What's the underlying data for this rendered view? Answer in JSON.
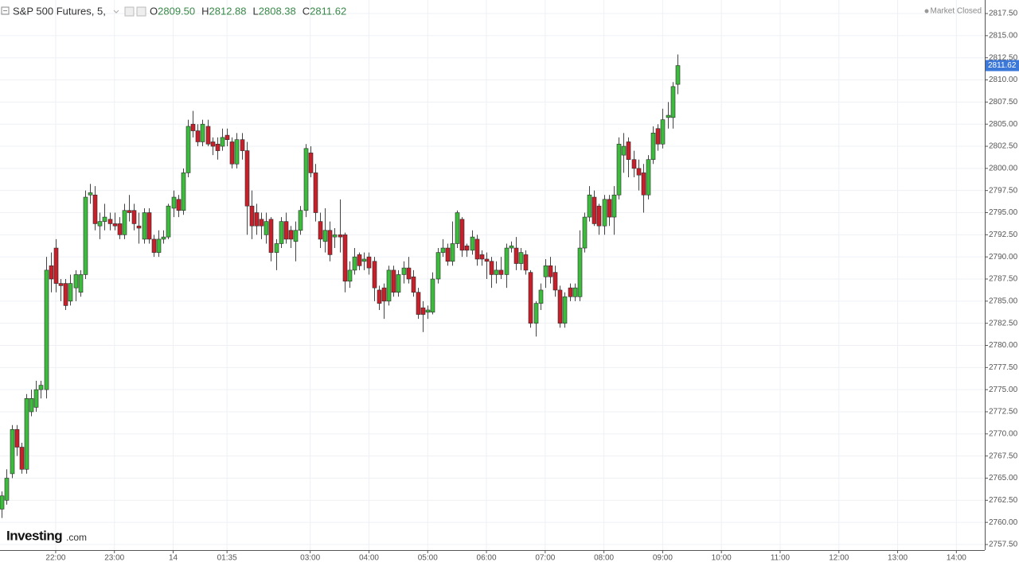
{
  "header": {
    "symbol": "S&P 500 Futures, 5,",
    "ohlc": [
      {
        "key": "O",
        "value": "2809.50"
      },
      {
        "key": "H",
        "value": "2812.88"
      },
      {
        "key": "L",
        "value": "2808.38"
      },
      {
        "key": "C",
        "value": "2811.62"
      }
    ],
    "status": "Market Closed"
  },
  "logo": {
    "name": "Investing",
    "suffix": ".com"
  },
  "chart_data": {
    "type": "candlestick",
    "up_color": "#3dbb3d",
    "down_color": "#c8202a",
    "grid": true,
    "price_tag": "2811.62",
    "price_tag_color": "#3b78d8",
    "ylim": [
      2756.87,
      2819.03
    ],
    "yticks": [
      {
        "value": 2757.5,
        "label": "2757.50"
      },
      {
        "value": 2760,
        "label": "2760.00"
      },
      {
        "value": 2762.5,
        "label": "2762.50"
      },
      {
        "value": 2765,
        "label": "2765.00"
      },
      {
        "value": 2767.5,
        "label": "2767.50"
      },
      {
        "value": 2770,
        "label": "2770.00"
      },
      {
        "value": 2772.5,
        "label": "2772.50"
      },
      {
        "value": 2775,
        "label": "2775.00"
      },
      {
        "value": 2777.5,
        "label": "2777.50"
      },
      {
        "value": 2780,
        "label": "2780.00"
      },
      {
        "value": 2782.5,
        "label": "2782.50"
      },
      {
        "value": 2785,
        "label": "2785.00"
      },
      {
        "value": 2787.5,
        "label": "2787.50"
      },
      {
        "value": 2790,
        "label": "2790.00"
      },
      {
        "value": 2792.5,
        "label": "2792.50"
      },
      {
        "value": 2795,
        "label": "2795.00"
      },
      {
        "value": 2797.5,
        "label": "2797.50"
      },
      {
        "value": 2800,
        "label": "2800.00"
      },
      {
        "value": 2802.5,
        "label": "2802.50"
      },
      {
        "value": 2805,
        "label": "2805.00"
      },
      {
        "value": 2807.5,
        "label": "2807.50"
      },
      {
        "value": 2810,
        "label": "2810.00"
      },
      {
        "value": 2812.5,
        "label": "2812.50"
      },
      {
        "value": 2815,
        "label": "2815.00"
      },
      {
        "value": 2817.5,
        "label": "2817.50"
      }
    ],
    "xlim": [
      -0.374,
      200.8
    ],
    "xticks": [
      {
        "value": 11,
        "label": "22:00"
      },
      {
        "value": 23,
        "label": "23:00"
      },
      {
        "value": 35,
        "label": "14"
      },
      {
        "value": 46,
        "label": "01:35"
      },
      {
        "value": 63,
        "label": "03:00"
      },
      {
        "value": 75,
        "label": "04:00"
      },
      {
        "value": 87,
        "label": "05:00"
      },
      {
        "value": 99,
        "label": "06:00"
      },
      {
        "value": 111,
        "label": "07:00"
      },
      {
        "value": 123,
        "label": "08:00"
      },
      {
        "value": 135,
        "label": "09:00"
      },
      {
        "value": 147,
        "label": "10:00"
      },
      {
        "value": 159,
        "label": "11:00"
      },
      {
        "value": 171,
        "label": "12:00"
      },
      {
        "value": 183,
        "label": "13:00"
      },
      {
        "value": 195,
        "label": "14:00"
      }
    ],
    "open": [
      2761.5,
      2762.5,
      2765.5,
      2770.5,
      2768.5,
      2766,
      2772.5,
      2773,
      2775,
      2775,
      2789,
      2791,
      2787,
      2787,
      2785,
      2786.5,
      2786,
      2788,
      2797,
      2797,
      2793.5,
      2794,
      2794.25,
      2793.75,
      2793.75,
      2792.5,
      2795.25,
      2795.25,
      2793.5,
      2792,
      2795,
      2792,
      2790.5,
      2792,
      2792.25,
      2795.5,
      2796.5,
      2795.25,
      2799.5,
      2805,
      2804.25,
      2803,
      2804.75,
      2803,
      2802.75,
      2802.5,
      2803.75,
      2803,
      2800.5,
      2803.25,
      2802,
      2795.75,
      2795,
      2794.25,
      2792.5,
      2794.25,
      2790.5,
      2791.5,
      2794,
      2793,
      2791.75,
      2793,
      2795.25,
      2801.75,
      2799.5,
      2794,
      2791.75,
      2793,
      2792.25,
      2792.5,
      2792.5,
      2787.25,
      2788.5,
      2790.25,
      2789.5,
      2790,
      2789.5,
      2786.25,
      2786.5,
      2785,
      2788.5,
      2786,
      2788,
      2788.75,
      2787.75,
      2786,
      2784.25,
      2783.75,
      2783.75,
      2787.5,
      2790.5,
      2791,
      2789.5,
      2791.5,
      2794.25,
      2791.25,
      2790.75,
      2792,
      2790.25,
      2789.75,
      2789.5,
      2788,
      2788.5,
      2788,
      2791,
      2791,
      2789.25,
      2790.25,
      2788.25,
      2782.5,
      2784.75,
      2787.75,
      2789,
      2788.25,
      2786.25,
      2782.5,
      2786.5,
      2785.5,
      2785.5,
      2791,
      2794.5,
      2796.75,
      2795.75,
      2793.5,
      2796.5,
      2794.5,
      2797,
      2801.5,
      2803,
      2801,
      2800,
      2799.5,
      2797,
      2801,
      2804.5,
      2802.75,
      2805.75,
      2805.75,
      2809.5
    ],
    "high": [
      2763.5,
      2766,
      2771,
      2771,
      2769,
      2774.5,
      2775,
      2776,
      2776,
      2790,
      2790.5,
      2792,
      2787.5,
      2787.5,
      2788,
      2788.5,
      2788.5,
      2797.5,
      2798.25,
      2798,
      2795,
      2796,
      2795,
      2795,
      2794.5,
      2796,
      2797,
      2796,
      2795,
      2795.5,
      2795.5,
      2792.5,
      2793,
      2793,
      2796,
      2797.5,
      2797,
      2800,
      2805.5,
      2806.5,
      2805,
      2805.5,
      2805.5,
      2803.5,
      2803.5,
      2804.5,
      2804.5,
      2803.5,
      2804,
      2804,
      2803,
      2797.5,
      2796,
      2795,
      2795,
      2794.5,
      2792,
      2794.5,
      2795,
      2793.5,
      2794,
      2795.75,
      2802.75,
      2802.5,
      2800.5,
      2795,
      2795.5,
      2794,
      2793.25,
      2796.5,
      2792.75,
      2789.5,
      2791,
      2790.5,
      2790.5,
      2790.5,
      2790,
      2786.75,
      2787,
      2789,
      2789,
      2788.5,
      2789.5,
      2790,
      2788.5,
      2786.5,
      2785,
      2784.5,
      2788.25,
      2791,
      2792,
      2791.5,
      2794,
      2795.25,
      2794.5,
      2791.5,
      2793,
      2792.5,
      2790.75,
      2790.5,
      2790,
      2789.5,
      2790,
      2791.5,
      2791.75,
      2792.25,
      2791,
      2790.75,
      2788.5,
      2785,
      2787,
      2789.75,
      2790,
      2789,
      2786.75,
      2786,
      2787,
      2787,
      2793,
      2795,
      2798,
      2797.5,
      2796,
      2797,
      2797,
      2798,
      2803.5,
      2804,
      2803.5,
      2802,
      2801,
      2800.5,
      2801.5,
      2804.75,
      2805,
      2806.75,
      2807.5,
      2809.75,
      2812.88
    ],
    "low": [
      2760.5,
      2762,
      2765,
      2767.5,
      2765.5,
      2765.5,
      2772,
      2772.5,
      2774,
      2774,
      2786,
      2786,
      2785,
      2784,
      2784.5,
      2785,
      2785.5,
      2787.5,
      2796,
      2793,
      2792,
      2793,
      2793,
      2793,
      2792,
      2792,
      2794,
      2793,
      2791.5,
      2791.5,
      2791.5,
      2790,
      2790,
      2791.5,
      2792,
      2794.5,
      2794.5,
      2794.75,
      2799,
      2803.5,
      2802.5,
      2802.5,
      2802.5,
      2801.5,
      2801,
      2802,
      2802.5,
      2800,
      2800,
      2801,
      2792.5,
      2792,
      2792.5,
      2792,
      2791.5,
      2789.5,
      2788.5,
      2791,
      2791.5,
      2791,
      2789.5,
      2792.5,
      2794.5,
      2799,
      2794,
      2791,
      2790.5,
      2789.5,
      2791,
      2790.5,
      2786,
      2786.5,
      2788,
      2788.5,
      2788.5,
      2788,
      2785,
      2784,
      2783,
      2784.5,
      2785.5,
      2785.5,
      2787,
      2787,
      2785.5,
      2783,
      2781.5,
      2783,
      2783.5,
      2787,
      2790,
      2789,
      2789,
      2791,
      2790,
      2790,
      2790.25,
      2789,
      2789,
      2787.5,
      2786.5,
      2787,
      2787.5,
      2786.5,
      2790.5,
      2788.5,
      2788.5,
      2788,
      2782,
      2781,
      2784,
      2786.5,
      2787,
      2785.5,
      2782,
      2782,
      2785,
      2785,
      2785,
      2790.5,
      2794,
      2793.5,
      2792.5,
      2792.5,
      2793.5,
      2792.5,
      2796.5,
      2799.5,
      2799,
      2799,
      2797.5,
      2795,
      2796.5,
      2800.5,
      2802,
      2802.25,
      2804.5,
      2804.5,
      2808.38
    ],
    "close": [
      2763,
      2765,
      2770.5,
      2768.5,
      2766,
      2774,
      2774,
      2775,
      2775.5,
      2788.5,
      2787.5,
      2787,
      2786.75,
      2784.5,
      2787,
      2788,
      2788,
      2796.75,
      2797.25,
      2793.75,
      2794,
      2794.5,
      2793.75,
      2793.5,
      2792.5,
      2795.25,
      2795,
      2793.75,
      2793.25,
      2795,
      2792,
      2790.5,
      2792,
      2792.25,
      2795.75,
      2796.75,
      2795.25,
      2799.5,
      2804.75,
      2804.25,
      2803,
      2805,
      2802.75,
      2802.5,
      2802,
      2803.5,
      2803.25,
      2800.5,
      2803.25,
      2802,
      2795.75,
      2793.5,
      2793.5,
      2793.5,
      2794,
      2790.5,
      2791.5,
      2794,
      2792,
      2792,
      2793,
      2795.25,
      2802.25,
      2799.5,
      2795,
      2792,
      2793,
      2790.25,
      2792.5,
      2792.25,
      2787.25,
      2788.5,
      2790,
      2789,
      2789.75,
      2788.75,
      2786.5,
      2784.75,
      2785,
      2788.5,
      2786,
      2788,
      2788.75,
      2787.5,
      2786,
      2783.5,
      2783.5,
      2784,
      2787.5,
      2790.5,
      2791,
      2789.5,
      2791.5,
      2795,
      2790.75,
      2790.75,
      2792.25,
      2789.75,
      2789.75,
      2789.5,
      2788,
      2788.5,
      2788,
      2791,
      2791.25,
      2789.25,
      2790.5,
      2788.5,
      2782.5,
      2784.75,
      2786.25,
      2789,
      2787.75,
      2786.25,
      2782.5,
      2785.5,
      2785.5,
      2786.5,
      2791,
      2794.5,
      2797,
      2793.75,
      2793.5,
      2796.5,
      2794.5,
      2797,
      2802.75,
      2802.5,
      2801,
      2800,
      2799.25,
      2797,
      2801,
      2804,
      2802.75,
      2805.5,
      2806,
      2809.25,
      2811.62
    ]
  }
}
